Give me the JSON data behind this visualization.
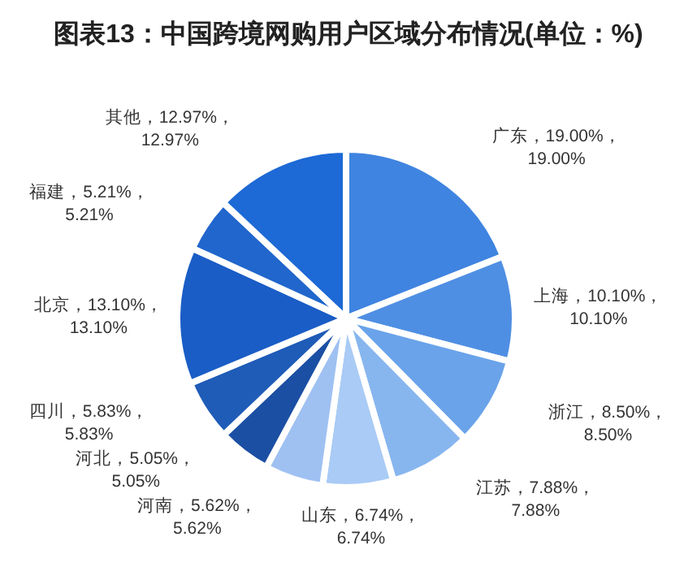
{
  "chart_data": {
    "type": "pie",
    "title": "图表13：中国跨境网购用户区域分布情况(单位：%)",
    "categories": [
      "广东",
      "上海",
      "浙江",
      "江苏",
      "山东",
      "河南",
      "河北",
      "四川",
      "北京",
      "福建",
      "其他"
    ],
    "values": [
      19.0,
      10.1,
      8.5,
      7.88,
      6.74,
      5.62,
      5.05,
      5.83,
      13.1,
      5.21,
      12.97
    ],
    "colors": [
      "#3f84e0",
      "#4f8fe3",
      "#6aa3ea",
      "#87b6ef",
      "#a9cbf5",
      "#9fc1f2",
      "#1b4fa3",
      "#1f5cb8",
      "#1a5dc6",
      "#2166cc",
      "#1d69d6"
    ],
    "value_labels": [
      "，19.00%，\n19.00%",
      "，10.10%，\n10.10%",
      "，8.50%，\n8.50%",
      "，7.88%，\n7.88%",
      "，6.74%，\n6.74%",
      "，5.62%，\n5.62%",
      "，5.05%，\n5.05%",
      "，5.83%，\n5.83%",
      "，13.10%，\n13.10%",
      "，5.21%，\n5.21%",
      "，12.97%，\n12.97%"
    ]
  }
}
